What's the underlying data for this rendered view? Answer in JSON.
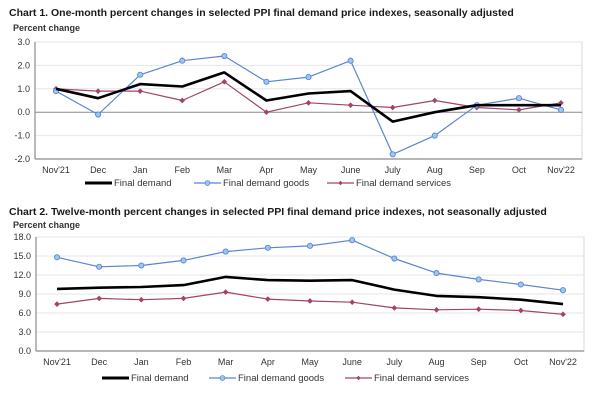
{
  "chart_data": [
    {
      "type": "line",
      "title": "Chart 1. One-month percent changes in selected PPI final demand price indexes, seasonally adjusted",
      "xlabel": "",
      "ylabel": "Percent change",
      "ylim": [
        -2.0,
        3.0
      ],
      "yticks": [
        "3.0",
        "2.0",
        "1.0",
        "0.0",
        "-1.0",
        "-2.0"
      ],
      "ytick_values": [
        3,
        2,
        1,
        0,
        -1,
        -2
      ],
      "grid": true,
      "legend_position": "bottom",
      "categories": [
        "Nov'21",
        "Dec",
        "Jan",
        "Feb",
        "Mar",
        "Apr",
        "May",
        "June",
        "July",
        "Aug",
        "Sep",
        "Oct",
        "Nov'22"
      ],
      "series": [
        {
          "name": "Final demand",
          "color": "#000000",
          "marker": "none",
          "values": [
            1.0,
            0.6,
            1.2,
            1.1,
            1.7,
            0.5,
            0.8,
            0.9,
            -0.4,
            0.0,
            0.3,
            0.3,
            0.3
          ]
        },
        {
          "name": "Final demand goods",
          "color": "#5b84d6",
          "marker": "circle",
          "values": [
            0.9,
            -0.1,
            1.6,
            2.2,
            2.4,
            1.3,
            1.5,
            2.2,
            -1.8,
            -1.0,
            0.3,
            0.6,
            0.1
          ]
        },
        {
          "name": "Final demand services",
          "color": "#a0446c",
          "marker": "diamond",
          "values": [
            1.0,
            0.9,
            0.9,
            0.5,
            1.3,
            0.0,
            0.4,
            0.3,
            0.2,
            0.5,
            0.2,
            0.1,
            0.4
          ]
        }
      ]
    },
    {
      "type": "line",
      "title": "Chart 2. Twelve-month percent changes in selected PPI final demand price indexes, not seasonally adjusted",
      "xlabel": "",
      "ylabel": "Percent change",
      "ylim": [
        0.0,
        18.0
      ],
      "yticks": [
        "18.0",
        "15.0",
        "12.0",
        "9.0",
        "6.0",
        "3.0",
        "0.0"
      ],
      "ytick_values": [
        18,
        15,
        12,
        9,
        6,
        3,
        0
      ],
      "grid": true,
      "legend_position": "bottom",
      "categories": [
        "Nov'21",
        "Dec",
        "Jan",
        "Feb",
        "Mar",
        "Apr",
        "May",
        "June",
        "July",
        "Aug",
        "Sep",
        "Oct",
        "Nov'22"
      ],
      "series": [
        {
          "name": "Final demand",
          "color": "#000000",
          "marker": "none",
          "values": [
            9.8,
            10.0,
            10.1,
            10.4,
            11.7,
            11.2,
            11.1,
            11.2,
            9.7,
            8.7,
            8.5,
            8.1,
            7.4
          ]
        },
        {
          "name": "Final demand goods",
          "color": "#5b84d6",
          "marker": "circle",
          "values": [
            14.8,
            13.3,
            13.5,
            14.3,
            15.7,
            16.3,
            16.6,
            17.5,
            14.6,
            12.3,
            11.3,
            10.5,
            9.6
          ]
        },
        {
          "name": "Final demand services",
          "color": "#a0446c",
          "marker": "diamond",
          "values": [
            7.4,
            8.3,
            8.1,
            8.3,
            9.3,
            8.2,
            7.9,
            7.7,
            6.8,
            6.5,
            6.6,
            6.4,
            5.8
          ]
        }
      ]
    }
  ]
}
